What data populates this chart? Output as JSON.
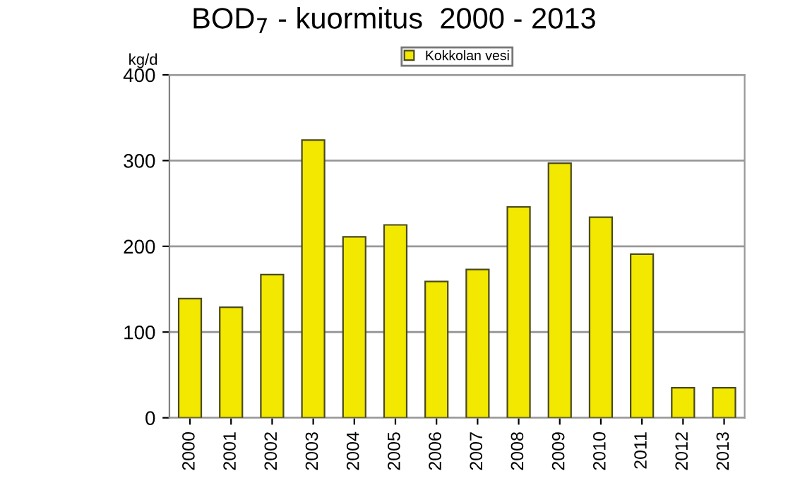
{
  "chart_data": {
    "type": "bar",
    "title": "BOD$_{7}$ - kuormitus  2000 - 2013",
    "ylabel": "kg/d",
    "categories": [
      "2000",
      "2001",
      "2002",
      "2003",
      "2004",
      "2005",
      "2006",
      "2007",
      "2008",
      "2009",
      "2010",
      "2011",
      "2012",
      "2013"
    ],
    "series": [
      {
        "name": "Kokkolan vesi",
        "color": "#f2e800",
        "values": [
          139,
          129,
          167,
          324,
          211,
          225,
          159,
          173,
          246,
          297,
          234,
          191,
          35,
          35
        ]
      }
    ],
    "ylim": [
      0,
      400
    ],
    "yticks": [
      0,
      100,
      200,
      300,
      400
    ],
    "grid": "y",
    "legend": "top"
  }
}
